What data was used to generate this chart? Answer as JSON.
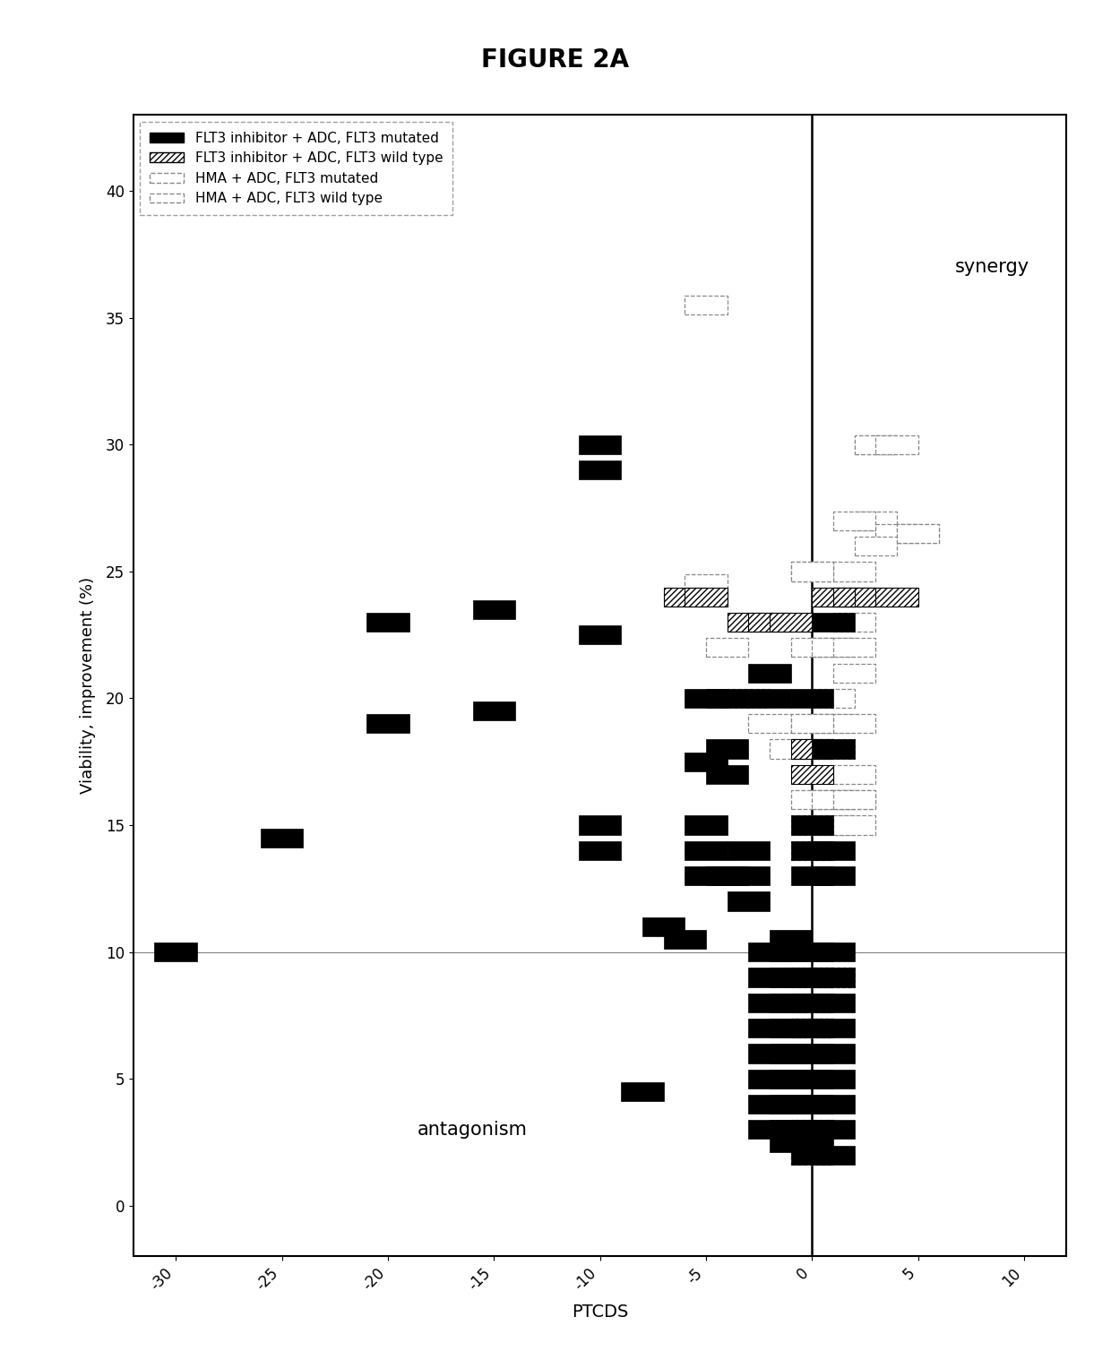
{
  "title": "FIGURE 2A",
  "xlabel": "PTCDS",
  "ylabel": "Viability, improvement (%)",
  "xlim": [
    -32,
    12
  ],
  "ylim": [
    -2,
    43
  ],
  "xticks": [
    -30,
    -25,
    -20,
    -15,
    -10,
    -5,
    0,
    5,
    10
  ],
  "yticks": [
    0,
    5,
    10,
    15,
    20,
    25,
    30,
    35,
    40
  ],
  "hline_y": 10,
  "vline_x": 0,
  "synergy_text": "synergy",
  "antagonism_text": "antagonism",
  "legend_labels": [
    "FLT3 inhibitor + ADC, FLT3 mutated",
    "FLT3 inhibitor + ADC, FLT3 wild type",
    "HMA + ADC, FLT3 mutated",
    "HMA + ADC, FLT3 wild type"
  ],
  "series1_data": [
    [
      -30,
      10
    ],
    [
      -25,
      14.5
    ],
    [
      -20,
      19
    ],
    [
      -20,
      23
    ],
    [
      -15,
      23.5
    ],
    [
      -15,
      19.5
    ],
    [
      -10,
      30
    ],
    [
      -10,
      29
    ],
    [
      -10,
      22.5
    ],
    [
      -10,
      15
    ],
    [
      -10,
      14
    ],
    [
      -8,
      4.5
    ],
    [
      -7,
      11
    ],
    [
      -6,
      10.5
    ],
    [
      -5,
      20
    ],
    [
      -5,
      17.5
    ],
    [
      -5,
      15
    ],
    [
      -5,
      14
    ],
    [
      -5,
      13
    ],
    [
      -4,
      20
    ],
    [
      -4,
      18
    ],
    [
      -4,
      17
    ],
    [
      -4,
      13
    ],
    [
      -3,
      14
    ],
    [
      -3,
      13
    ],
    [
      -3,
      12
    ],
    [
      -2,
      21
    ],
    [
      -2,
      20
    ],
    [
      -2,
      10
    ],
    [
      -2,
      9
    ],
    [
      -2,
      8
    ],
    [
      -2,
      7
    ],
    [
      -2,
      6
    ],
    [
      -2,
      5
    ],
    [
      -2,
      4
    ],
    [
      -2,
      3
    ],
    [
      -1,
      10.5
    ],
    [
      -1,
      10
    ],
    [
      -1,
      9
    ],
    [
      -1,
      8
    ],
    [
      -1,
      7
    ],
    [
      -1,
      6
    ],
    [
      -1,
      5
    ],
    [
      -1,
      4
    ],
    [
      -1,
      3
    ],
    [
      -1,
      2.5
    ],
    [
      0,
      20
    ],
    [
      0,
      15
    ],
    [
      0,
      14
    ],
    [
      0,
      13
    ],
    [
      0,
      10
    ],
    [
      0,
      9
    ],
    [
      0,
      8
    ],
    [
      0,
      7
    ],
    [
      0,
      6
    ],
    [
      0,
      5
    ],
    [
      0,
      4
    ],
    [
      0,
      3
    ],
    [
      0,
      2.5
    ],
    [
      0,
      2
    ],
    [
      1,
      23
    ],
    [
      1,
      18
    ],
    [
      1,
      14
    ],
    [
      1,
      13
    ],
    [
      1,
      10
    ],
    [
      1,
      9
    ],
    [
      1,
      8
    ],
    [
      1,
      7
    ],
    [
      1,
      6
    ],
    [
      1,
      5
    ],
    [
      1,
      4
    ],
    [
      1,
      3
    ],
    [
      1,
      2
    ]
  ],
  "series2_data": [
    [
      -6,
      24
    ],
    [
      -5,
      24
    ],
    [
      -3,
      23
    ],
    [
      -2,
      23
    ],
    [
      -1,
      23
    ],
    [
      0,
      18
    ],
    [
      0,
      17
    ],
    [
      1,
      24
    ],
    [
      2,
      24
    ],
    [
      3,
      24
    ],
    [
      4,
      24
    ]
  ],
  "series3_data": [
    [
      -5,
      24.5
    ],
    [
      -4,
      22
    ],
    [
      -3,
      20
    ],
    [
      -2,
      19
    ],
    [
      -1,
      18
    ],
    [
      0,
      25
    ],
    [
      0,
      22
    ],
    [
      0,
      19
    ],
    [
      0,
      16
    ],
    [
      0,
      8
    ],
    [
      0,
      7
    ],
    [
      0,
      2
    ],
    [
      1,
      22
    ],
    [
      1,
      20
    ],
    [
      1,
      18
    ],
    [
      1,
      16
    ],
    [
      1,
      9
    ],
    [
      2,
      27
    ],
    [
      2,
      24
    ],
    [
      2,
      22
    ],
    [
      2,
      21
    ],
    [
      2,
      16
    ],
    [
      2,
      15
    ],
    [
      3,
      30
    ],
    [
      3,
      26
    ],
    [
      4,
      30
    ],
    [
      5,
      26.5
    ]
  ],
  "series4_data": [
    [
      -5,
      35.5
    ],
    [
      0,
      25
    ],
    [
      0,
      19
    ],
    [
      0,
      18
    ],
    [
      0,
      15
    ],
    [
      0,
      14
    ],
    [
      0,
      9
    ],
    [
      0,
      7
    ],
    [
      0,
      3
    ],
    [
      0,
      2
    ],
    [
      1,
      24
    ],
    [
      1,
      22
    ],
    [
      1,
      19
    ],
    [
      1,
      16
    ],
    [
      1,
      15
    ],
    [
      1,
      9
    ],
    [
      2,
      25
    ],
    [
      2,
      24
    ],
    [
      2,
      23
    ],
    [
      2,
      19
    ],
    [
      2,
      17
    ],
    [
      2,
      16
    ],
    [
      3,
      30
    ],
    [
      3,
      27
    ],
    [
      4,
      26.5
    ],
    [
      5,
      26.5
    ]
  ],
  "bar_width": 2.0,
  "bar_height": 0.75
}
